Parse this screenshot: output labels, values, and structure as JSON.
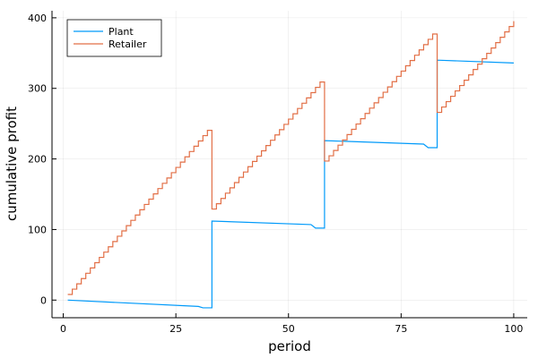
{
  "chart_data": {
    "type": "line",
    "step": true,
    "title": "",
    "xlabel": "period",
    "ylabel": "cumulative profit",
    "xlim": [
      -2.5,
      103
    ],
    "ylim": [
      -25,
      410
    ],
    "xticks": [
      0,
      25,
      50,
      75,
      100
    ],
    "yticks": [
      0,
      100,
      200,
      300,
      400
    ],
    "xtick_labels": [
      "0",
      "25",
      "50",
      "75",
      "100"
    ],
    "ytick_labels": [
      "0",
      "100",
      "200",
      "300",
      "400"
    ],
    "grid": true,
    "legend_position": "top-left",
    "series": [
      {
        "name": "Plant",
        "color": "#009AFA",
        "points": [
          [
            1,
            0
          ],
          [
            30,
            -9
          ],
          [
            31,
            -11
          ],
          [
            33,
            -11
          ],
          [
            33,
            112
          ],
          [
            55,
            107
          ],
          [
            56,
            102
          ],
          [
            58,
            102
          ],
          [
            58,
            226
          ],
          [
            80,
            221
          ],
          [
            81,
            216
          ],
          [
            83,
            216
          ],
          [
            83,
            340
          ],
          [
            100,
            336
          ]
        ]
      },
      {
        "name": "Retailer",
        "color": "#E26F46",
        "segments": [
          {
            "from": 1,
            "to": 33,
            "start": 8,
            "step": 7.5
          },
          {
            "from": 33,
            "to": 58,
            "start": 129,
            "step": 7.5
          },
          {
            "from": 58,
            "to": 83,
            "start": 197,
            "step": 7.5
          },
          {
            "from": 83,
            "to": 100,
            "start": 266,
            "step": 7.6
          }
        ]
      }
    ]
  }
}
